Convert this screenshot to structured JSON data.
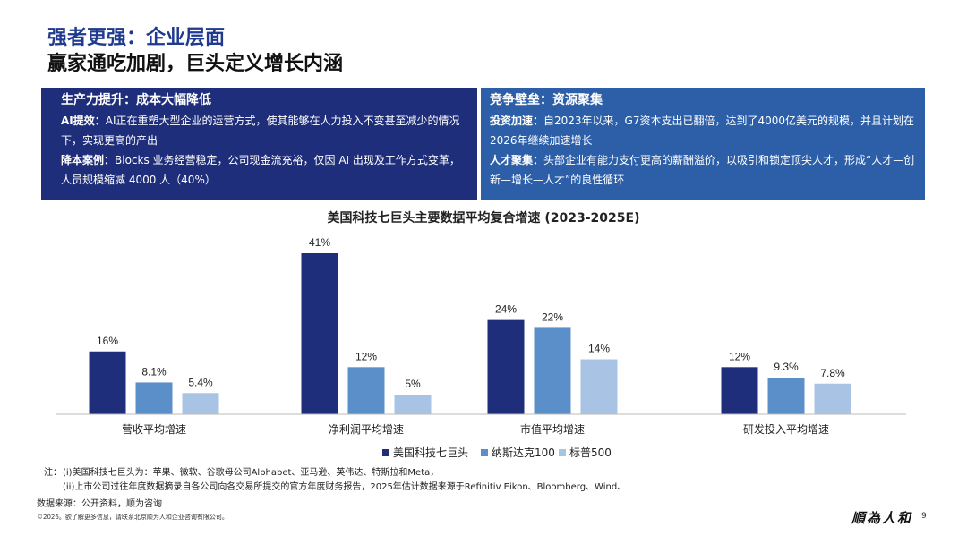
{
  "header": {
    "title": "强者更强：企业层面",
    "subtitle": "赢家通吃加剧，巨头定义增长内涵"
  },
  "panels": {
    "left": {
      "title": "生产力提升：成本大幅降低",
      "items": [
        {
          "label": "AI提效：",
          "text": "AI正在重塑大型企业的运营方式，使其能够在人力投入不变甚至减少的情况下，实现更高的产出"
        },
        {
          "label": "降本案例：",
          "text": "Blocks 业务经营稳定，公司现金流充裕，仅因 AI 出现及工作方式变革，人员规模缩减 4000 人（40%）"
        }
      ]
    },
    "right": {
      "title": "竞争壁垒：资源聚集",
      "items": [
        {
          "label": "投资加速：",
          "text": "自2023年以来，G7资本支出已翻倍，达到了4000亿美元的规模，并且计划在2026年继续加速增长"
        },
        {
          "label": "人才聚集：",
          "text": "头部企业有能力支付更高的薪酬溢价，以吸引和锁定顶尖人才，形成“人才—创新—增长—人才”的良性循环"
        }
      ]
    }
  },
  "chart_data": {
    "type": "bar",
    "title": "美国科技七巨头主要数据平均复合增速 (2023-2025E)",
    "categories": [
      "营收平均增速",
      "净利润平均增速",
      "市值平均增速",
      "研发投入平均增速"
    ],
    "series": [
      {
        "name": "美国科技七巨头",
        "values": [
          16,
          41,
          24,
          12
        ],
        "labels": [
          "16%",
          "41%",
          "24%",
          "12%"
        ],
        "color": "#1f2e7a"
      },
      {
        "name": "纳斯达克100",
        "values": [
          8.1,
          12,
          22,
          9.3
        ],
        "labels": [
          "8.1%",
          "12%",
          "22%",
          "9.3%"
        ],
        "color": "#5b8fca"
      },
      {
        "name": "标普500",
        "values": [
          5.4,
          5,
          14,
          7.8
        ],
        "labels": [
          "5.4%",
          "5%",
          "14%",
          "7.8%"
        ],
        "color": "#a8c3e3"
      }
    ],
    "ylim": [
      0,
      41
    ],
    "legend_position": "bottom-right",
    "xlabel": "",
    "ylabel": ""
  },
  "notes": {
    "prefix": "注：",
    "lines": [
      "(i)美国科技七巨头为：苹果、微软、谷歌母公司Alphabet、亚马逊、英伟达、特斯拉和Meta，",
      "(ii)上市公司过往年度数据摘录自各公司向各交易所提交的官方年度财务报告，2025年估计数据来源于Refinitiv Eikon、Bloomberg、Wind、"
    ]
  },
  "footer": {
    "source": "数据来源：公开资料，顺为咨询",
    "copyright": "©2026。欲了解更多信息，请联系北京顺为人和企业咨询有限公司。",
    "logo_text": "順為人和",
    "page_number": "9"
  }
}
